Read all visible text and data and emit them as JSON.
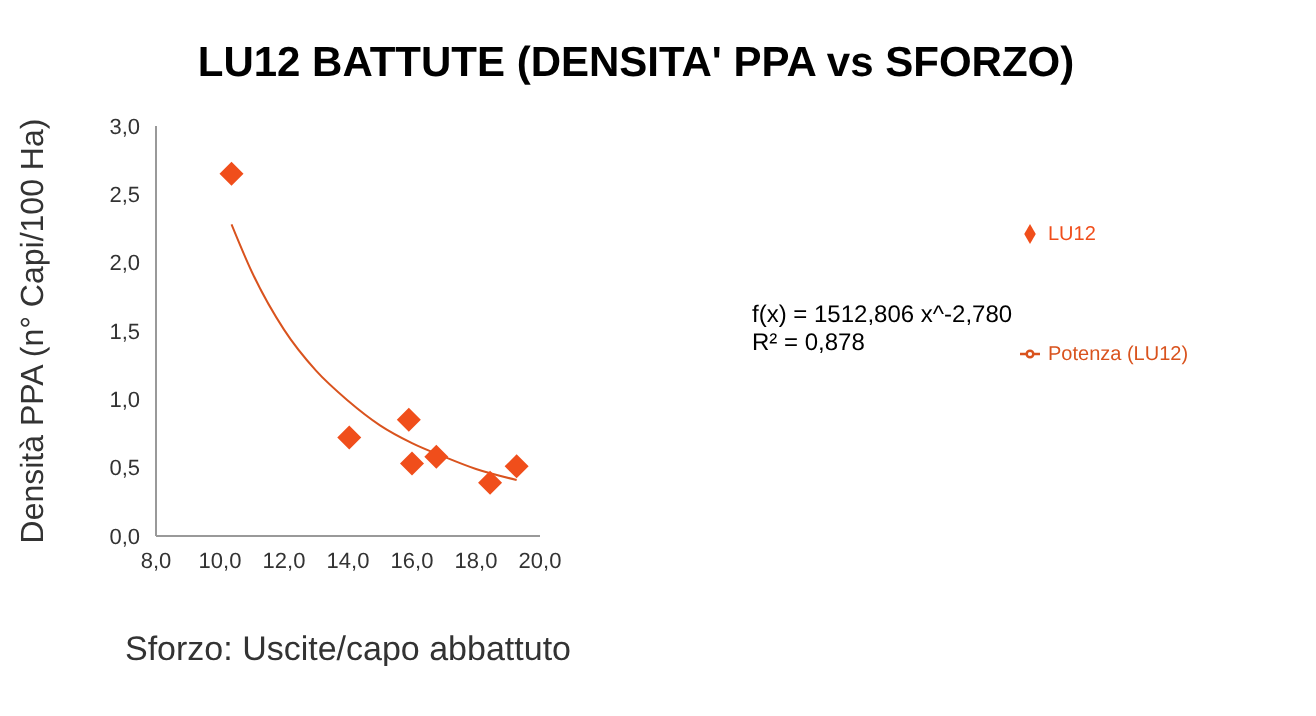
{
  "chart_data": {
    "type": "scatter",
    "title": "LU12 BATTUTE (DENSITA' PPA vs SFORZO)",
    "xlabel": "Sforzo: Uscite/capo abbattuto",
    "ylabel": "Densità  PPA (n° Capi/100 Ha)",
    "xlim": [
      8,
      20
    ],
    "xticks": [
      {
        "value": 8,
        "label": "8,0"
      },
      {
        "value": 10,
        "label": "10,0"
      },
      {
        "value": 12,
        "label": "12,0"
      },
      {
        "value": 14,
        "label": "14,0"
      },
      {
        "value": 16,
        "label": "16,0"
      },
      {
        "value": 18,
        "label": "18,0"
      },
      {
        "value": 20,
        "label": "20,0"
      }
    ],
    "ylim": [
      0,
      3
    ],
    "yticks": [
      {
        "value": 0,
        "label": "0,0"
      },
      {
        "value": 0.5,
        "label": "0,5"
      },
      {
        "value": 1,
        "label": "1,0"
      },
      {
        "value": 1.5,
        "label": "1,5"
      },
      {
        "value": 2,
        "label": "2,0"
      },
      {
        "value": 2.5,
        "label": "2,5"
      },
      {
        "value": 3,
        "label": "3,0"
      }
    ],
    "grid": false,
    "legend": "right",
    "marker": "diamond",
    "annotations": [
      "f(x) = 1512,806 x^-2,780",
      "R² = 0,878"
    ],
    "series": [
      {
        "name": "LU12",
        "color": "#f04e1b",
        "x": [
          10.36,
          14.04,
          15.9,
          16.0,
          16.76,
          18.44,
          19.27
        ],
        "values": [
          2.65,
          0.72,
          0.85,
          0.53,
          0.58,
          0.39,
          0.51
        ]
      },
      {
        "name": "Potenza (LU12)",
        "type": "line",
        "color": "#d9531e",
        "marker": "none",
        "x": [
          10.36,
          11,
          12,
          13,
          14,
          15,
          16,
          17,
          18,
          19.27
        ],
        "values": [
          2.28,
          1.93,
          1.51,
          1.21,
          0.99,
          0.81,
          0.68,
          0.58,
          0.49,
          0.41
        ]
      }
    ]
  }
}
